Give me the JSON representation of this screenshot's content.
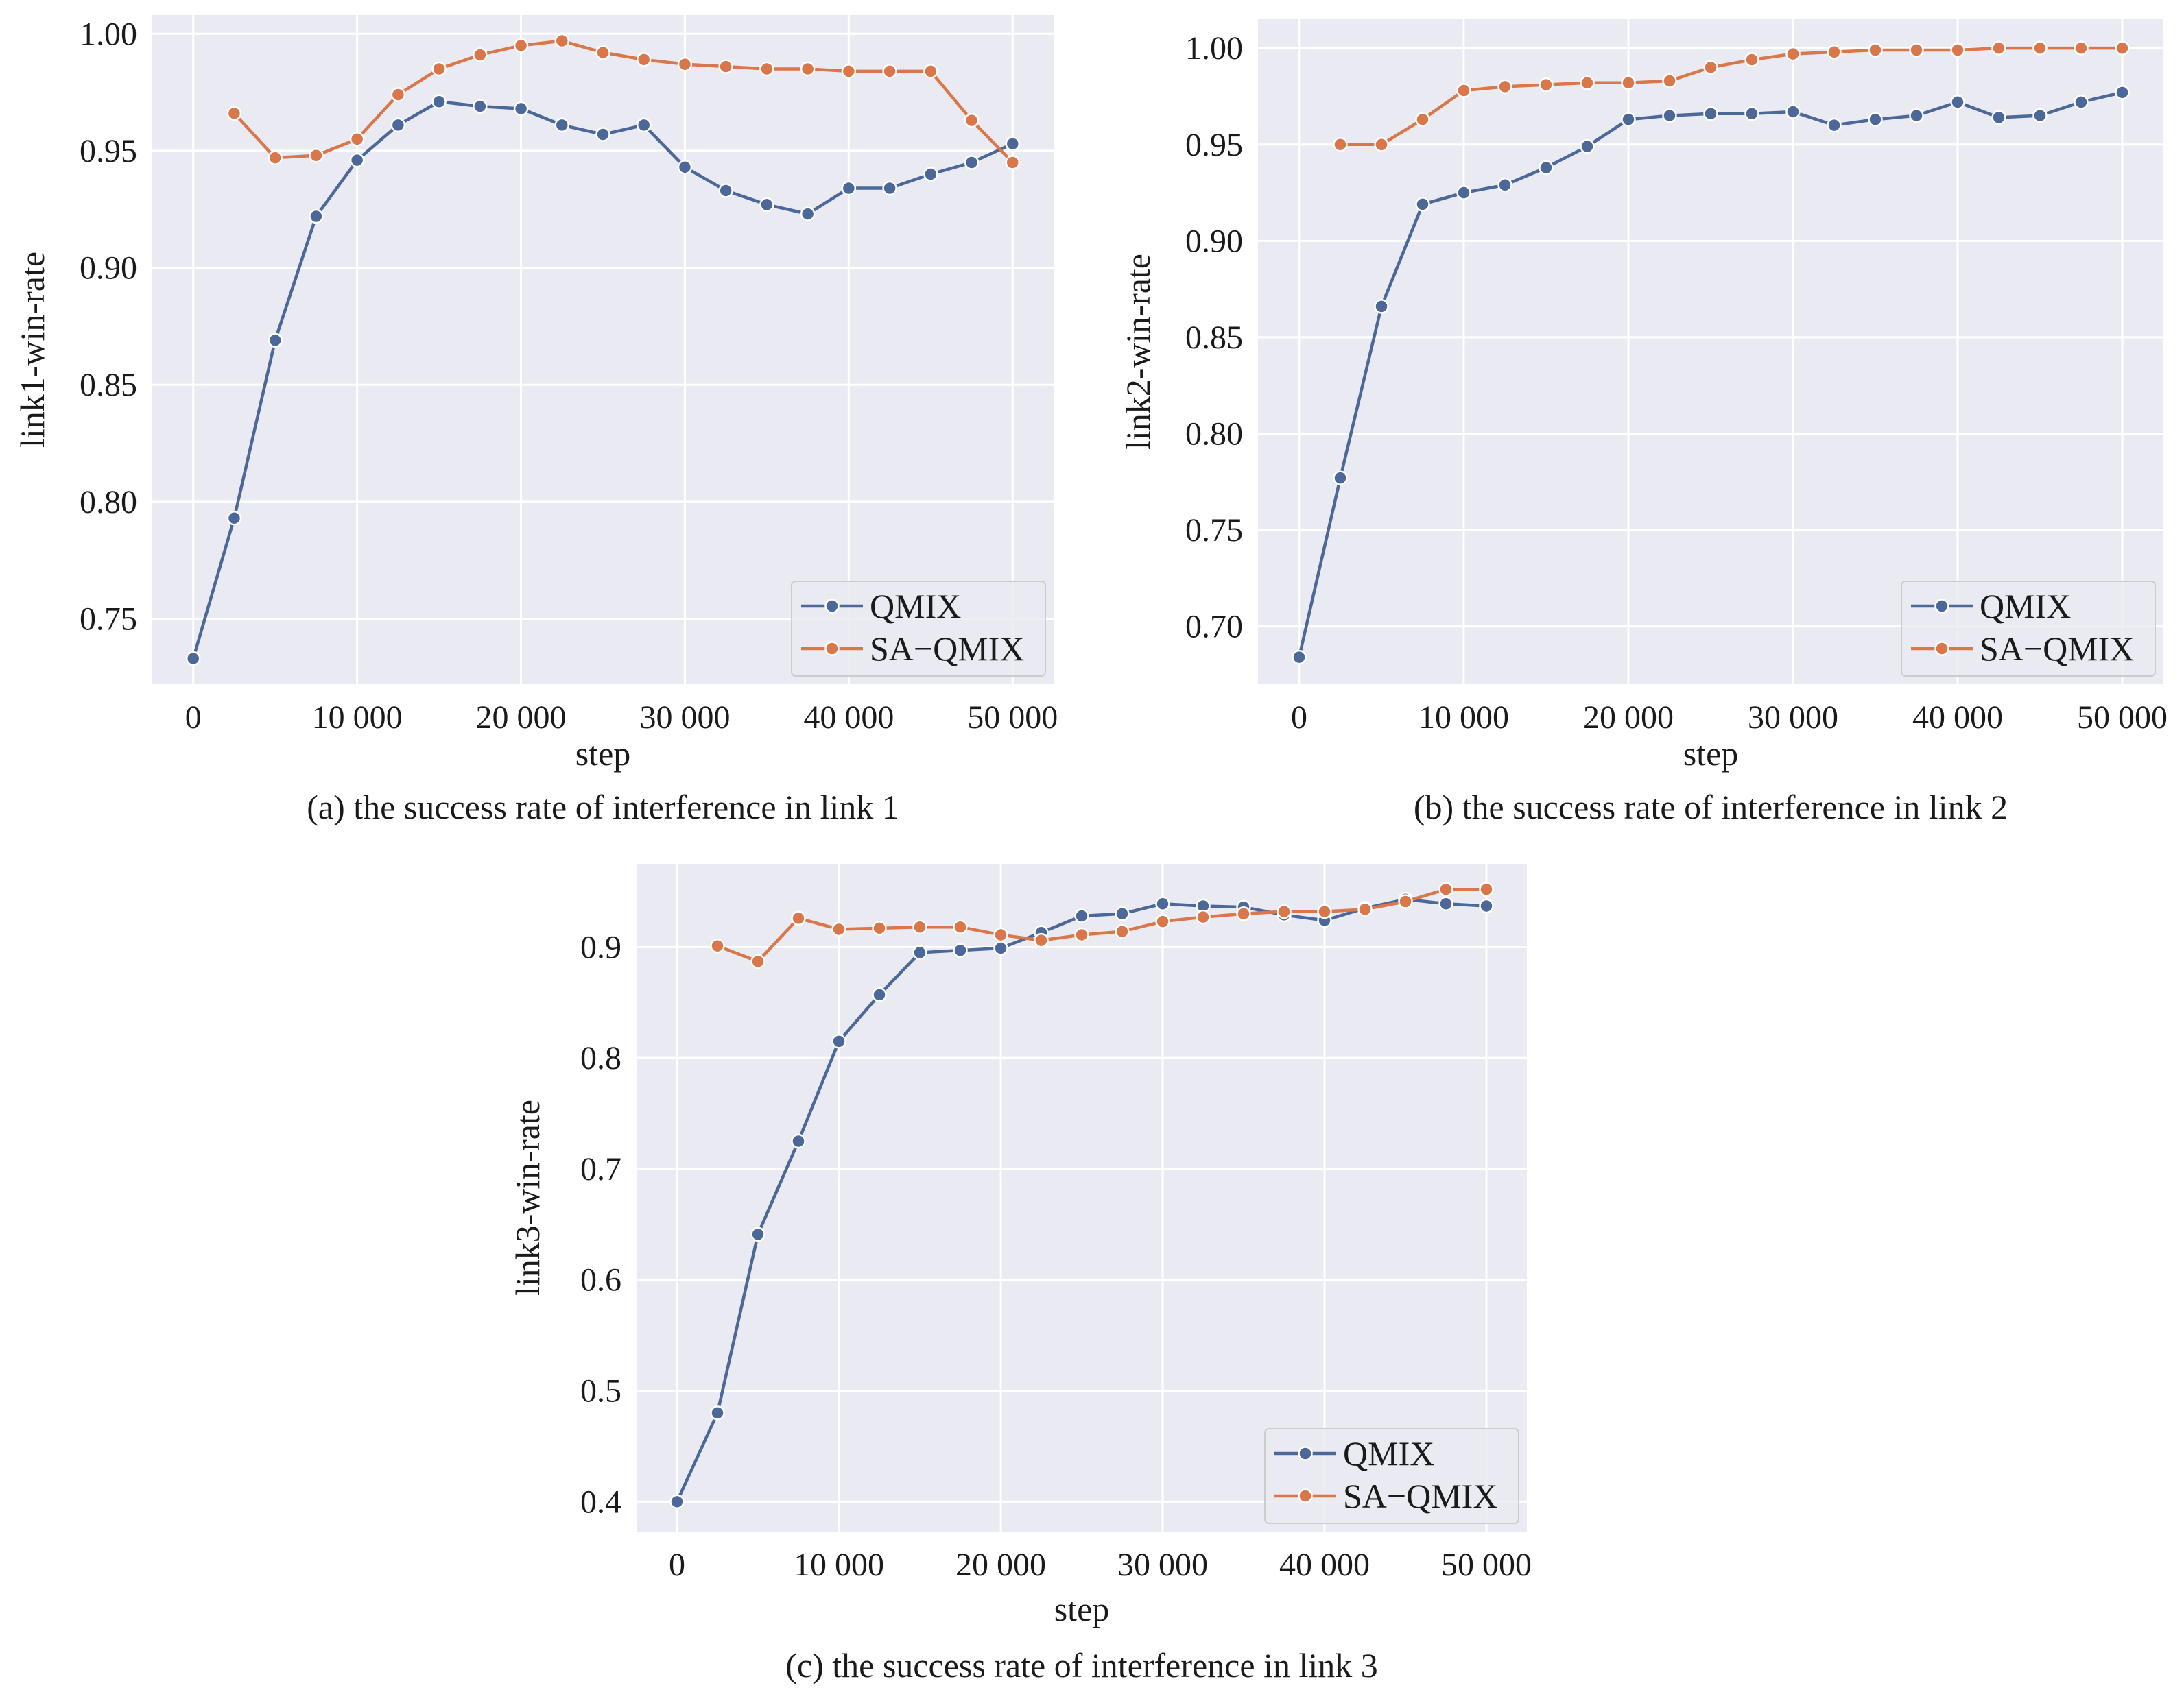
{
  "colors": {
    "plot_background": "#eaeaf2",
    "grid": "#ffffff",
    "qmix": "#4c6899",
    "sa_qmix": "#d9764a"
  },
  "chart_data": [
    {
      "type": "line",
      "caption": "(a) the success rate of interference in link 1",
      "xlabel": "step",
      "ylabel": "link1-win-rate",
      "xlim": [
        -2500,
        52500
      ],
      "ylim": [
        0.722,
        1.008
      ],
      "xticks": [
        0,
        10000,
        20000,
        30000,
        40000,
        50000
      ],
      "xtick_labels": [
        "0",
        "10 000",
        "20 000",
        "30 000",
        "40 000",
        "50 000"
      ],
      "yticks": [
        0.75,
        0.8,
        0.85,
        0.9,
        0.95,
        1.0
      ],
      "ytick_labels": [
        "0.75",
        "0.80",
        "0.85",
        "0.90",
        "0.95",
        "1.00"
      ],
      "grid": true,
      "legend_position": "lower right",
      "series": [
        {
          "name": "QMIX",
          "color_key": "qmix",
          "x": [
            0,
            2500,
            5000,
            7500,
            10000,
            12500,
            15000,
            17500,
            20000,
            22500,
            25000,
            27500,
            30000,
            32500,
            35000,
            37500,
            40000,
            42500,
            45000,
            47500,
            50000
          ],
          "y": [
            0.733,
            0.793,
            0.869,
            0.922,
            0.946,
            0.961,
            0.971,
            0.969,
            0.968,
            0.961,
            0.957,
            0.961,
            0.943,
            0.933,
            0.927,
            0.923,
            0.934,
            0.934,
            0.94,
            0.945,
            0.953
          ]
        },
        {
          "name": "SA−QMIX",
          "color_key": "sa_qmix",
          "x": [
            2500,
            5000,
            7500,
            10000,
            12500,
            15000,
            17500,
            20000,
            22500,
            25000,
            27500,
            30000,
            32500,
            35000,
            37500,
            40000,
            42500,
            45000,
            47500,
            50000
          ],
          "y": [
            0.966,
            0.947,
            0.948,
            0.955,
            0.974,
            0.985,
            0.991,
            0.995,
            0.997,
            0.992,
            0.989,
            0.987,
            0.986,
            0.985,
            0.985,
            0.984,
            0.984,
            0.984,
            0.963,
            0.945
          ]
        }
      ]
    },
    {
      "type": "line",
      "caption": "(b) the success rate of interference in link 2",
      "xlabel": "step",
      "ylabel": "link2-win-rate",
      "xlim": [
        -2500,
        52500
      ],
      "ylim": [
        0.67,
        1.015
      ],
      "xticks": [
        0,
        10000,
        20000,
        30000,
        40000,
        50000
      ],
      "xtick_labels": [
        "0",
        "10 000",
        "20 000",
        "30 000",
        "40 000",
        "50 000"
      ],
      "yticks": [
        0.7,
        0.75,
        0.8,
        0.85,
        0.9,
        0.95,
        1.0
      ],
      "ytick_labels": [
        "0.70",
        "0.75",
        "0.80",
        "0.85",
        "0.90",
        "0.95",
        "1.00"
      ],
      "grid": true,
      "legend_position": "lower right",
      "series": [
        {
          "name": "QMIX",
          "color_key": "qmix",
          "x": [
            0,
            2500,
            5000,
            7500,
            10000,
            12500,
            15000,
            17500,
            20000,
            22500,
            25000,
            27500,
            30000,
            32500,
            35000,
            37500,
            40000,
            42500,
            45000,
            47500,
            50000
          ],
          "y": [
            0.684,
            0.777,
            0.866,
            0.919,
            0.925,
            0.929,
            0.938,
            0.949,
            0.963,
            0.965,
            0.966,
            0.966,
            0.967,
            0.96,
            0.963,
            0.965,
            0.972,
            0.964,
            0.965,
            0.972,
            0.977
          ]
        },
        {
          "name": "SA−QMIX",
          "color_key": "sa_qmix",
          "x": [
            2500,
            5000,
            7500,
            10000,
            12500,
            15000,
            17500,
            20000,
            22500,
            25000,
            27500,
            30000,
            32500,
            35000,
            37500,
            40000,
            42500,
            45000,
            47500,
            50000
          ],
          "y": [
            0.95,
            0.95,
            0.963,
            0.978,
            0.98,
            0.981,
            0.982,
            0.982,
            0.983,
            0.99,
            0.994,
            0.997,
            0.998,
            0.999,
            0.999,
            0.999,
            1.0,
            1.0,
            1.0,
            1.0
          ]
        }
      ]
    },
    {
      "type": "line",
      "caption": "(c) the success rate of interference in link 3",
      "xlabel": "step",
      "ylabel": "link3-win-rate",
      "xlim": [
        -2500,
        52500
      ],
      "ylim": [
        0.373,
        0.975
      ],
      "xticks": [
        0,
        10000,
        20000,
        30000,
        40000,
        50000
      ],
      "xtick_labels": [
        "0",
        "10 000",
        "20 000",
        "30 000",
        "40 000",
        "50 000"
      ],
      "yticks": [
        0.4,
        0.5,
        0.6,
        0.7,
        0.8,
        0.9
      ],
      "ytick_labels": [
        "0.4",
        "0.5",
        "0.6",
        "0.7",
        "0.8",
        "0.9"
      ],
      "grid": true,
      "legend_position": "lower right",
      "series": [
        {
          "name": "QMIX",
          "color_key": "qmix",
          "x": [
            0,
            2500,
            5000,
            7500,
            10000,
            12500,
            15000,
            17500,
            20000,
            22500,
            25000,
            27500,
            30000,
            32500,
            35000,
            37500,
            40000,
            42500,
            45000,
            47500,
            50000
          ],
          "y": [
            0.4,
            0.48,
            0.641,
            0.725,
            0.815,
            0.857,
            0.895,
            0.897,
            0.899,
            0.913,
            0.928,
            0.93,
            0.939,
            0.937,
            0.936,
            0.929,
            0.924,
            0.935,
            0.943,
            0.939,
            0.937
          ]
        },
        {
          "name": "SA−QMIX",
          "color_key": "sa_qmix",
          "x": [
            2500,
            5000,
            7500,
            10000,
            12500,
            15000,
            17500,
            20000,
            22500,
            25000,
            27500,
            30000,
            32500,
            35000,
            37500,
            40000,
            42500,
            45000,
            47500,
            50000
          ],
          "y": [
            0.901,
            0.887,
            0.926,
            0.916,
            0.917,
            0.918,
            0.918,
            0.911,
            0.906,
            0.911,
            0.914,
            0.923,
            0.927,
            0.93,
            0.932,
            0.932,
            0.934,
            0.941,
            0.952,
            0.952
          ]
        }
      ]
    }
  ]
}
